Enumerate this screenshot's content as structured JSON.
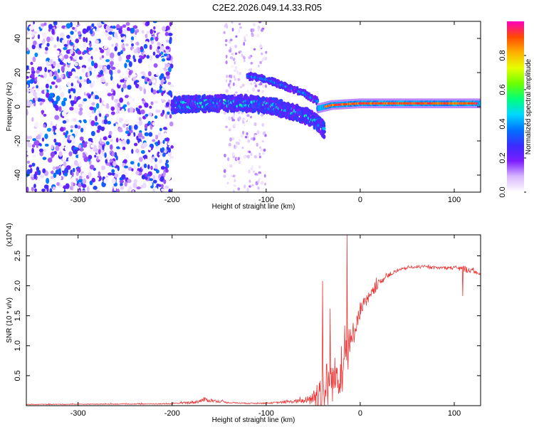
{
  "title": "C2E2.2026.049.14.33.R05",
  "chart_data": [
    {
      "type": "heatmap",
      "name": "spectrogram",
      "xlabel": "Height of straight line (km)",
      "ylabel": "Frequency (Hz)",
      "xlim": [
        -355,
        128
      ],
      "ylim": [
        -50,
        50
      ],
      "xticks": [
        -300,
        -200,
        -100,
        0,
        100
      ],
      "yticks": [
        -40,
        -20,
        0,
        20,
        40
      ],
      "colorbar": {
        "label": "Normalized spectral amplitude",
        "range": [
          0,
          1
        ],
        "ticks": [
          0.0,
          0.2,
          0.4,
          0.6,
          0.8
        ],
        "colors": [
          "#ffffff",
          "#d9b8ff",
          "#7c1dff",
          "#3a2cff",
          "#0072ff",
          "#00d8ff",
          "#00ff7a",
          "#6cff00",
          "#e6ff00",
          "#ffb000",
          "#ff4a00",
          "#ff00c0"
        ]
      },
      "features": [
        {
          "name": "noise-region",
          "x_range": [
            -355,
            -200
          ],
          "y_range": [
            -50,
            50
          ],
          "amplitude": 0.15
        },
        {
          "name": "noise-column",
          "x_range": [
            -145,
            -100
          ],
          "y_range": [
            -50,
            50
          ],
          "amplitude": 0.08
        },
        {
          "name": "main-ridge",
          "x": [
            -200,
            -160,
            -120,
            -90,
            -60,
            -45,
            -38
          ],
          "y": [
            1,
            2,
            2,
            0,
            -5,
            -9,
            -14
          ],
          "amplitude": 0.35
        },
        {
          "name": "upper-branch",
          "x": [
            -120,
            -100,
            -80,
            -60,
            -45
          ],
          "y": [
            18,
            16,
            12,
            8,
            3
          ],
          "amplitude": 0.3
        },
        {
          "name": "stable-line",
          "x": [
            -45,
            -30,
            0,
            50,
            100,
            128
          ],
          "y": [
            -1,
            1,
            2,
            2,
            2,
            2
          ],
          "amplitude": 0.9
        }
      ]
    },
    {
      "type": "line",
      "name": "snr",
      "xlabel": "Height of straight line (km)",
      "ylabel": "SNR (10 * v/v)",
      "y_multiplier": "(x10^4)",
      "xlim": [
        -355,
        128
      ],
      "ylim": [
        0,
        2.85
      ],
      "xticks": [
        -300,
        -200,
        -100,
        0,
        100
      ],
      "yticks": [
        0.5,
        1.0,
        1.5,
        2.0,
        2.5
      ],
      "x_step": 0.5,
      "color": "#ee3333",
      "envelope": {
        "x": [
          -355,
          -200,
          -175,
          -165,
          -150,
          -140,
          -120,
          -100,
          -80,
          -60,
          -50,
          -40,
          -30,
          -20,
          -15,
          -10,
          -5,
          0,
          10,
          20,
          30,
          40,
          50,
          60,
          80,
          100,
          110,
          120,
          128
        ],
        "base": [
          0.02,
          0.03,
          0.06,
          0.1,
          0.07,
          0.05,
          0.04,
          0.04,
          0.06,
          0.08,
          0.12,
          0.25,
          0.4,
          0.6,
          0.8,
          1.0,
          1.35,
          1.6,
          1.8,
          2.05,
          2.18,
          2.25,
          2.3,
          2.32,
          2.3,
          2.3,
          2.28,
          2.25,
          2.18
        ],
        "amp": [
          0.01,
          0.015,
          0.05,
          0.08,
          0.04,
          0.02,
          0.02,
          0.02,
          0.04,
          0.08,
          0.25,
          1.0,
          0.7,
          0.8,
          1.2,
          0.6,
          0.35,
          0.28,
          0.22,
          0.12,
          0.08,
          0.06,
          0.05,
          0.05,
          0.05,
          0.06,
          0.12,
          0.06,
          0.05
        ]
      },
      "spikes": [
        {
          "x": -40,
          "y": 2.08
        },
        {
          "x": -32,
          "y": 1.62
        },
        {
          "x": -14,
          "y": 2.85
        },
        {
          "x": 109,
          "y": 1.83
        }
      ]
    }
  ]
}
